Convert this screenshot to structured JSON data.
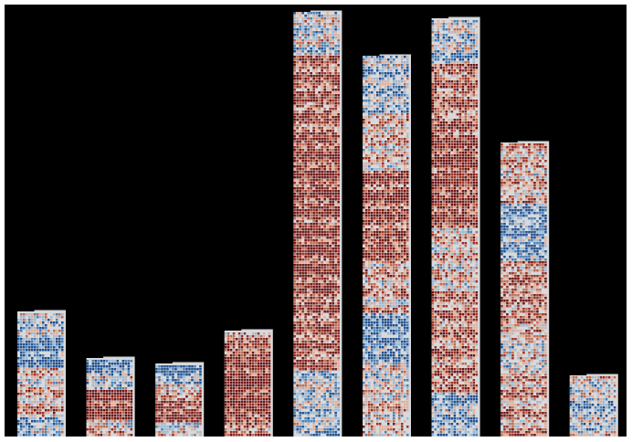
{
  "chart_data": {
    "type": "bar",
    "categories": [
      "",
      "",
      "",
      "",
      "",
      "",
      "",
      "",
      ""
    ],
    "values": [
      137,
      86,
      80,
      116,
      465,
      417,
      458,
      322,
      67
    ],
    "ylim": [
      0,
      473
    ],
    "grid": false,
    "legend": "none",
    "bar_fill": "heatmap-texture",
    "colors": {
      "background": "#000000",
      "frame": "#ffffff",
      "scale": [
        "#1f4f8f",
        "#4a7fb5",
        "#9cb9d3",
        "#d7d9dc",
        "#e0b09a",
        "#c06a4f",
        "#9e2f22",
        "#6e1414"
      ]
    }
  }
}
